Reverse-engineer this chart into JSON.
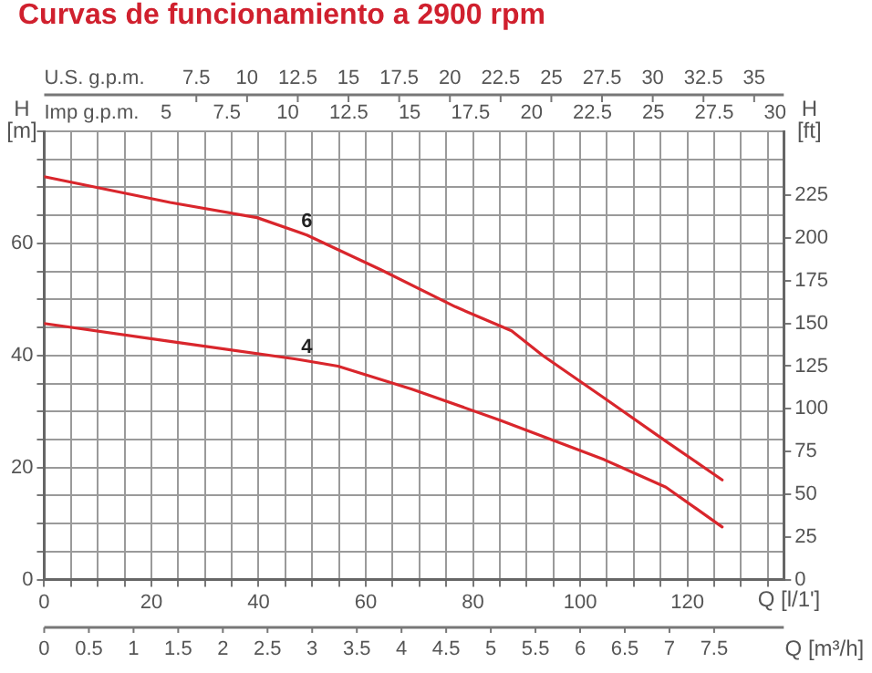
{
  "chart_data": {
    "type": "line",
    "title": "Curvas de funcionamiento a 2900 rpm",
    "xlabel": "Q [l/1']",
    "x2label": "U.S. g.p.m.",
    "ylabel": "H [m]",
    "y2label": "H [ft]",
    "xlim": [
      0,
      138
    ],
    "xticks": [
      0,
      {
        "value": 5,
        "label": null
      },
      {
        "value": 10,
        "label": null
      },
      {
        "value": 15,
        "label": null
      },
      20,
      {
        "value": 25,
        "label": null
      },
      {
        "value": 30,
        "label": null
      },
      {
        "value": 35,
        "label": null
      },
      40,
      {
        "value": 45,
        "label": null
      },
      {
        "value": 50,
        "label": null
      },
      {
        "value": 55,
        "label": null
      },
      60,
      {
        "value": 65,
        "label": null
      },
      {
        "value": 70,
        "label": null
      },
      {
        "value": 75,
        "label": null
      },
      80,
      {
        "value": 85,
        "label": null
      },
      {
        "value": 90,
        "label": null
      },
      {
        "value": 95,
        "label": null
      },
      100,
      {
        "value": 105,
        "label": null
      },
      {
        "value": 110,
        "label": null
      },
      {
        "value": 115,
        "label": null
      },
      120,
      {
        "value": 125,
        "label": null
      },
      {
        "value": 130,
        "label": null
      },
      {
        "value": 135,
        "label": null
      }
    ],
    "x2lim": [
      0,
      36.46
    ],
    "x2ticks": [
      7.5,
      10,
      12.5,
      15,
      17.5,
      20,
      22.5,
      25,
      27.5,
      30,
      32.5,
      35
    ],
    "ylim": [
      0,
      80
    ],
    "yticks": [
      0,
      {
        "value": 5,
        "label": null
      },
      {
        "value": 10,
        "label": null
      },
      {
        "value": 15,
        "label": null
      },
      20,
      {
        "value": 25,
        "label": null
      },
      {
        "value": 30,
        "label": null
      },
      {
        "value": 35,
        "label": null
      },
      40,
      {
        "value": 45,
        "label": null
      },
      {
        "value": 50,
        "label": null
      },
      {
        "value": 55,
        "label": null
      },
      60,
      {
        "value": 65,
        "label": null
      },
      {
        "value": 70,
        "label": null
      },
      {
        "value": 75,
        "label": null
      },
      {
        "value": 80,
        "label": null
      }
    ],
    "y2lim": [
      0,
      262.47
    ],
    "y2ticks": [
      0,
      25,
      50,
      75,
      100,
      125,
      150,
      175,
      200,
      225
    ],
    "grid": true,
    "marker": "none",
    "line_style": "solid",
    "series": [
      {
        "color": "#d9262c",
        "x": [
          0,
          23.5,
          39.7,
          49,
          62.8,
          76.7,
          87.2,
          93,
          104.5,
          116,
          126.5
        ],
        "values": [
          71.9,
          67.3,
          64.6,
          61.5,
          55.3,
          48.7,
          44.4,
          40,
          32.4,
          24.7,
          17.8
        ]
      },
      {
        "color": "#d9262c",
        "x": [
          0,
          23.5,
          46.7,
          54.8,
          68.6,
          84.9,
          104.5,
          116,
          126.5
        ],
        "values": [
          45.7,
          42.5,
          39.4,
          38.1,
          34,
          28.5,
          21.4,
          16.5,
          9.4
        ]
      }
    ],
    "annotations": [
      {
        "text": "6",
        "x": 49,
        "y": 61.5
      },
      {
        "text": "4",
        "x": 49,
        "y": 39
      },
      "Imp g.p.m.",
      "5",
      "7.5",
      "10",
      "12.5",
      "15",
      "17.5",
      "20",
      "22.5",
      "25",
      "27.5",
      "30",
      "Q [m³/h]",
      "0",
      "0.5",
      "1",
      "1.5",
      "2",
      "2.5",
      "3",
      "3.5",
      "4",
      "4.5",
      "5",
      "5.5",
      "6",
      "6.5",
      "7",
      "7.5"
    ]
  }
}
